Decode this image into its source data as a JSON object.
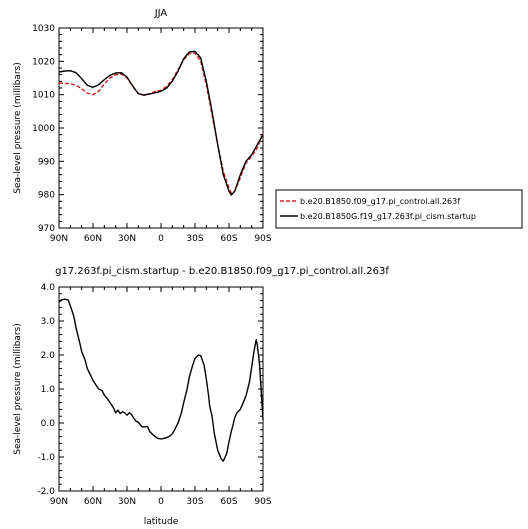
{
  "chart_data": [
    {
      "type": "line",
      "title": "JJA",
      "xlabel": "",
      "ylabel": "Sea-level pressure (millibars)",
      "xlim": [
        90,
        -90
      ],
      "ylim": [
        970,
        1030
      ],
      "x_ticks": [
        "90N",
        "60N",
        "30N",
        "0",
        "30S",
        "60S",
        "90S"
      ],
      "y_ticks": [
        "970",
        "980",
        "990",
        "1000",
        "1010",
        "1020",
        "1030"
      ],
      "legend_position": "right",
      "series": [
        {
          "name": "b.e20.B1850.f09_g17.pi_control.all.263f",
          "color": "#d62020",
          "style": "dashed",
          "x": [
            90,
            85,
            80,
            75,
            70,
            65,
            60,
            55,
            50,
            45,
            40,
            35,
            30,
            25,
            20,
            15,
            10,
            5,
            0,
            -5,
            -10,
            -15,
            -20,
            -25,
            -30,
            -35,
            -40,
            -45,
            -50,
            -55,
            -60,
            -62,
            -65,
            -70,
            -75,
            -80,
            -85,
            -90
          ],
          "values": [
            1013.5,
            1013.4,
            1013.3,
            1012.8,
            1011.8,
            1010.5,
            1010.0,
            1011.0,
            1013.2,
            1015.0,
            1016.0,
            1016.2,
            1015.0,
            1012.5,
            1010.3,
            1009.8,
            1010.3,
            1011.0,
            1011.3,
            1012.5,
            1014.5,
            1017.5,
            1020.5,
            1022.3,
            1022.5,
            1020.0,
            1013.0,
            1004.0,
            995.0,
            987.0,
            982.0,
            980.5,
            981.0,
            985.0,
            989.5,
            991.5,
            994.0,
            998.5
          ]
        },
        {
          "name": "b.e20.B1850G.f19_g17.263f.pi_cism.startup",
          "color": "#000000",
          "style": "solid",
          "x": [
            90,
            85,
            80,
            75,
            70,
            65,
            60,
            55,
            50,
            45,
            40,
            35,
            30,
            25,
            20,
            15,
            10,
            5,
            0,
            -5,
            -10,
            -15,
            -20,
            -25,
            -30,
            -35,
            -40,
            -45,
            -50,
            -55,
            -60,
            -62,
            -65,
            -70,
            -75,
            -80,
            -85,
            -90
          ],
          "values": [
            1016.8,
            1017.1,
            1017.2,
            1016.6,
            1014.8,
            1012.8,
            1012.2,
            1013.0,
            1014.5,
            1015.8,
            1016.5,
            1016.6,
            1015.3,
            1012.6,
            1010.3,
            1009.9,
            1010.2,
            1010.6,
            1011.0,
            1012.0,
            1014.0,
            1017.0,
            1020.8,
            1022.8,
            1023.0,
            1021.0,
            1014.0,
            1005.0,
            995.0,
            986.0,
            981.0,
            979.9,
            981.0,
            986.0,
            990.0,
            992.0,
            995.0,
            998.0
          ]
        }
      ]
    },
    {
      "type": "line",
      "title": "g17.263f.pi_cism.startup - b.e20.B1850.f09_g17.pi_control.all.263f",
      "xlabel": "latitude",
      "ylabel": "Sea-level pressure (millibars)",
      "xlim": [
        90,
        -90
      ],
      "ylim": [
        -2.0,
        4.0
      ],
      "x_ticks": [
        "90N",
        "60N",
        "30N",
        "0",
        "30S",
        "60S",
        "90S"
      ],
      "y_ticks": [
        "-2.0",
        "-1.0",
        "0.0",
        "1.0",
        "2.0",
        "3.0",
        "4.0"
      ],
      "series": [
        {
          "color": "#000000",
          "style": "solid",
          "x": [
            90,
            88,
            85,
            82,
            80,
            77,
            75,
            72,
            70,
            67,
            65,
            62,
            60,
            57,
            55,
            52,
            50,
            47,
            45,
            42,
            40,
            38,
            36,
            34,
            32,
            30,
            28,
            26,
            24,
            22,
            20,
            17,
            15,
            12,
            10,
            7,
            5,
            3,
            0,
            -3,
            -5,
            -8,
            -10,
            -12,
            -15,
            -18,
            -20,
            -23,
            -25,
            -28,
            -30,
            -33,
            -35,
            -38,
            -40,
            -42,
            -43,
            -45,
            -47,
            -50,
            -53,
            -55,
            -58,
            -60,
            -62,
            -64,
            -65,
            -67,
            -70,
            -72,
            -75,
            -78,
            -80,
            -82,
            -84,
            -85,
            -86,
            -87,
            -88,
            -89,
            -90
          ],
          "values": [
            3.55,
            3.62,
            3.64,
            3.62,
            3.45,
            3.15,
            2.8,
            2.4,
            2.1,
            1.85,
            1.6,
            1.4,
            1.25,
            1.1,
            1.0,
            0.95,
            0.82,
            0.7,
            0.6,
            0.45,
            0.3,
            0.38,
            0.28,
            0.33,
            0.3,
            0.23,
            0.3,
            0.25,
            0.14,
            0.05,
            0.02,
            -0.1,
            -0.12,
            -0.1,
            -0.25,
            -0.35,
            -0.4,
            -0.45,
            -0.47,
            -0.45,
            -0.43,
            -0.38,
            -0.32,
            -0.2,
            0.0,
            0.3,
            0.6,
            1.0,
            1.35,
            1.7,
            1.9,
            2.0,
            1.98,
            1.7,
            1.3,
            0.8,
            0.5,
            0.2,
            -0.3,
            -0.8,
            -1.05,
            -1.12,
            -0.9,
            -0.55,
            -0.25,
            0.0,
            0.15,
            0.3,
            0.4,
            0.55,
            0.8,
            1.2,
            1.65,
            2.1,
            2.45,
            2.3,
            2.0,
            1.7,
            1.2,
            0.6,
            0.1
          ]
        }
      ]
    }
  ]
}
